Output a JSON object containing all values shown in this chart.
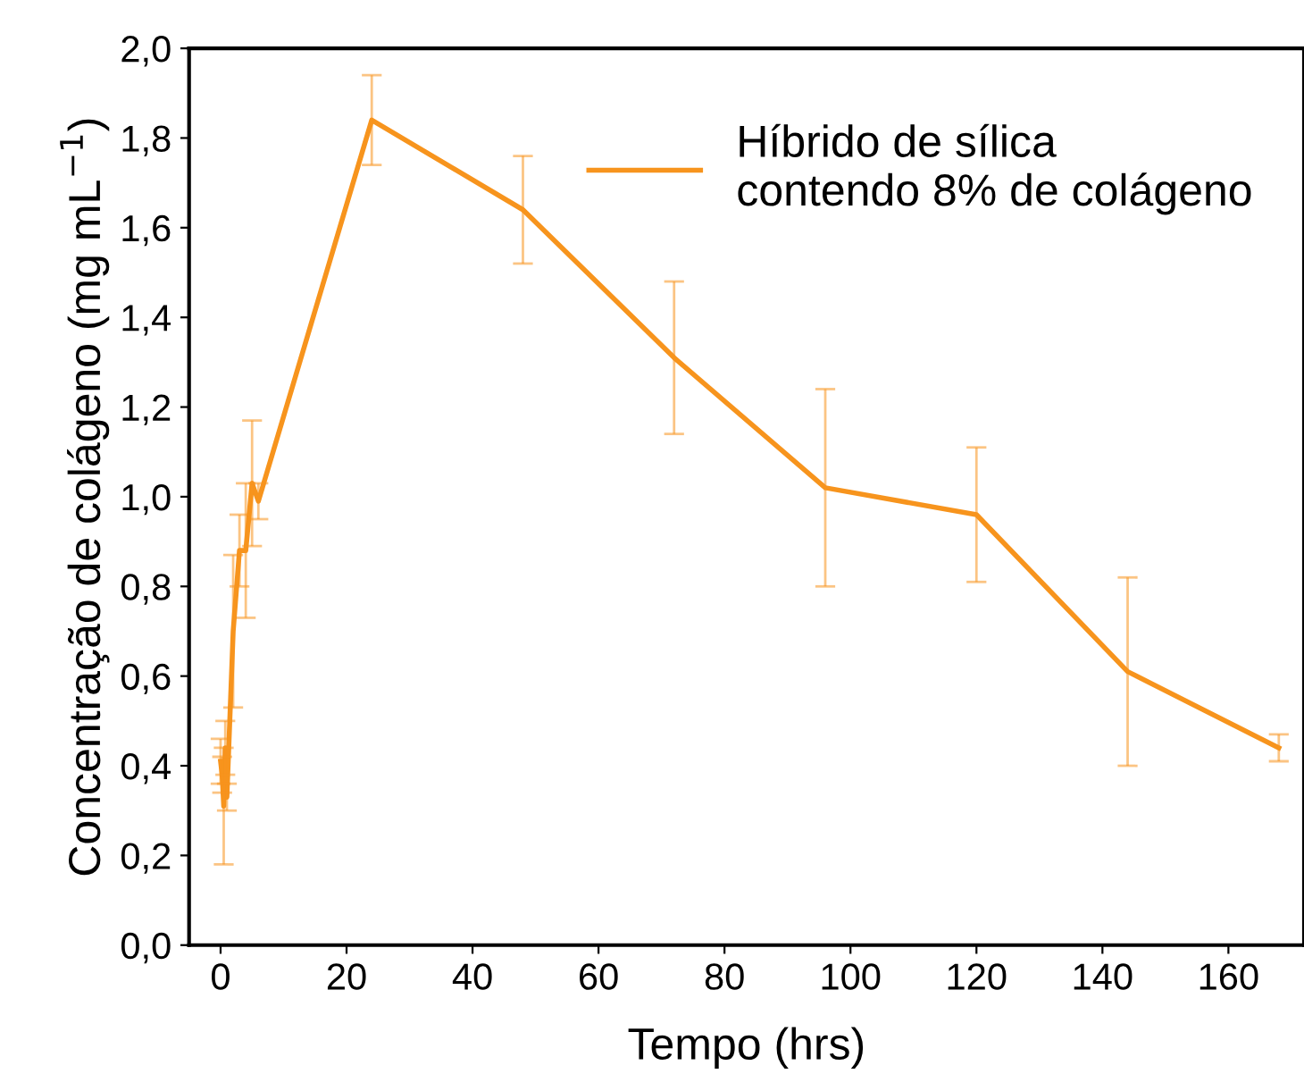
{
  "chart_data": {
    "type": "line",
    "xlabel": "Tempo (hrs)",
    "ylabel": "Concentração de colágeno (mg mL$^{−1}$)",
    "x": [
      0,
      0.25,
      0.5,
      0.75,
      1,
      2,
      3,
      4,
      5,
      6,
      24,
      48,
      72,
      96,
      120,
      144,
      168
    ],
    "series": [
      {
        "name": "Híbrido de sílica\ncontendo 8% de colágeno",
        "color": "#f7941d",
        "values": [
          0.41,
          0.38,
          0.31,
          0.44,
          0.33,
          0.7,
          0.88,
          0.88,
          1.03,
          0.99,
          1.84,
          1.64,
          1.31,
          1.02,
          0.96,
          0.61,
          0.44
        ],
        "errors": [
          0.05,
          0.04,
          0.13,
          0.06,
          0.03,
          0.17,
          0.08,
          0.15,
          0.14,
          0.04,
          0.1,
          0.12,
          0.17,
          0.22,
          0.15,
          0.21,
          0.03
        ]
      }
    ],
    "xlim": [
      -5,
      172
    ],
    "ylim": [
      0,
      2.0
    ],
    "xticks": [
      0,
      20,
      40,
      60,
      80,
      100,
      120,
      140,
      160
    ],
    "yticks": [
      {
        "value": 0,
        "label": "0,0"
      },
      {
        "value": 0.2,
        "label": "0,2"
      },
      {
        "value": 0.4,
        "label": "0,4"
      },
      {
        "value": 0.6,
        "label": "0,6"
      },
      {
        "value": 0.8,
        "label": "0,8"
      },
      {
        "value": 1.0,
        "label": "1,0"
      },
      {
        "value": 1.2,
        "label": "1,2"
      },
      {
        "value": 1.4,
        "label": "1,4"
      },
      {
        "value": 1.6,
        "label": "1,6"
      },
      {
        "value": 1.8,
        "label": "1,8"
      },
      {
        "value": 2.0,
        "label": "2,0"
      }
    ],
    "legend": "top right",
    "grid": false,
    "marker": "none",
    "line_style": "solid"
  }
}
